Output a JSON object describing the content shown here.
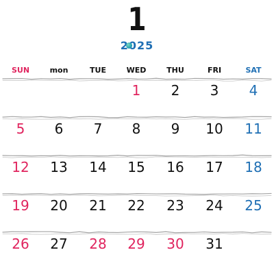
{
  "header": {
    "month": "1",
    "year": "2025"
  },
  "colors": {
    "weekday": "#111111",
    "sunday": "#e0245e",
    "saturday": "#1f6fb4",
    "holiday": "#e0245e",
    "year": "#1f6fb4",
    "separator": "#9a9a9a"
  },
  "weekdays": [
    {
      "label": "SUN",
      "color": "#e0245e"
    },
    {
      "label": "mon",
      "color": "#111111"
    },
    {
      "label": "TUE",
      "color": "#111111"
    },
    {
      "label": "WED",
      "color": "#111111"
    },
    {
      "label": "THU",
      "color": "#111111"
    },
    {
      "label": "FRI",
      "color": "#111111"
    },
    {
      "label": "SAT",
      "color": "#1f6fb4"
    }
  ],
  "weeks": [
    [
      {
        "label": ""
      },
      {
        "label": ""
      },
      {
        "label": ""
      },
      {
        "label": "1",
        "color": "#e0245e"
      },
      {
        "label": "2",
        "color": "#111111"
      },
      {
        "label": "3",
        "color": "#111111"
      },
      {
        "label": "4",
        "color": "#1f6fb4"
      }
    ],
    [
      {
        "label": "5",
        "color": "#e0245e"
      },
      {
        "label": "6",
        "color": "#111111"
      },
      {
        "label": "7",
        "color": "#111111"
      },
      {
        "label": "8",
        "color": "#111111"
      },
      {
        "label": "9",
        "color": "#111111"
      },
      {
        "label": "10",
        "color": "#111111"
      },
      {
        "label": "11",
        "color": "#1f6fb4"
      }
    ],
    [
      {
        "label": "12",
        "color": "#e0245e"
      },
      {
        "label": "13",
        "color": "#111111"
      },
      {
        "label": "14",
        "color": "#111111"
      },
      {
        "label": "15",
        "color": "#111111"
      },
      {
        "label": "16",
        "color": "#111111"
      },
      {
        "label": "17",
        "color": "#111111"
      },
      {
        "label": "18",
        "color": "#1f6fb4"
      }
    ],
    [
      {
        "label": "19",
        "color": "#e0245e"
      },
      {
        "label": "20",
        "color": "#111111"
      },
      {
        "label": "21",
        "color": "#111111"
      },
      {
        "label": "22",
        "color": "#111111"
      },
      {
        "label": "23",
        "color": "#111111"
      },
      {
        "label": "24",
        "color": "#111111"
      },
      {
        "label": "25",
        "color": "#1f6fb4"
      }
    ],
    [
      {
        "label": "26",
        "color": "#e0245e"
      },
      {
        "label": "27",
        "color": "#111111"
      },
      {
        "label": "28",
        "color": "#e0245e"
      },
      {
        "label": "29",
        "color": "#e0245e"
      },
      {
        "label": "30",
        "color": "#e0245e"
      },
      {
        "label": "31",
        "color": "#111111"
      },
      {
        "label": ""
      }
    ]
  ]
}
